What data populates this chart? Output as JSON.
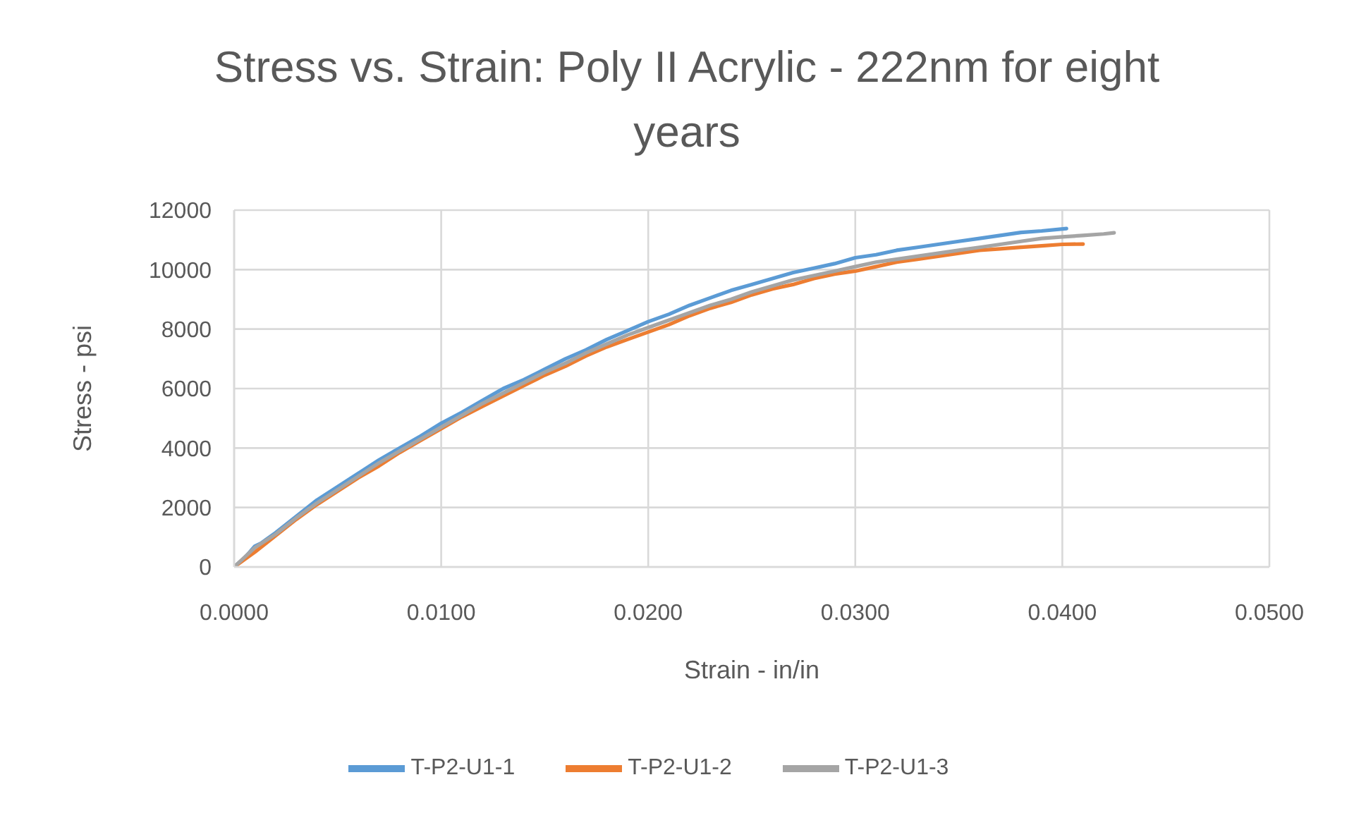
{
  "chart_data": {
    "type": "line",
    "title": "Stress vs. Strain: Poly II Acrylic - 222nm for eight years",
    "xlabel": "Strain - in/in",
    "ylabel": "Stress - psi",
    "xlim": [
      0,
      0.05
    ],
    "xticks": [
      {
        "value": 0,
        "label": "0.0000"
      },
      {
        "value": 0.01,
        "label": "0.0100"
      },
      {
        "value": 0.02,
        "label": "0.0200"
      },
      {
        "value": 0.03,
        "label": "0.0300"
      },
      {
        "value": 0.04,
        "label": "0.0400"
      },
      {
        "value": 0.05,
        "label": "0.0500"
      }
    ],
    "ylim": [
      0,
      12000
    ],
    "yticks": [
      0,
      2000,
      4000,
      6000,
      8000,
      10000,
      12000
    ],
    "grid": true,
    "legend": "bottom",
    "marker": "none",
    "line_style": "solid",
    "series": [
      {
        "name": "T-P2-U1-1",
        "color": "#5b9bd5",
        "x": [
          0,
          0.0005,
          0.001,
          0.0013,
          0.002,
          0.003,
          0.004,
          0.005,
          0.006,
          0.007,
          0.008,
          0.009,
          0.01,
          0.011,
          0.012,
          0.013,
          0.014,
          0.015,
          0.016,
          0.017,
          0.018,
          0.019,
          0.02,
          0.021,
          0.022,
          0.023,
          0.024,
          0.025,
          0.026,
          0.027,
          0.028,
          0.029,
          0.03,
          0.031,
          0.032,
          0.033,
          0.034,
          0.035,
          0.036,
          0.037,
          0.038,
          0.039,
          0.0402
        ],
        "values": [
          0,
          300,
          700,
          800,
          1150,
          1700,
          2250,
          2700,
          3150,
          3600,
          4000,
          4400,
          4830,
          5200,
          5600,
          6000,
          6300,
          6650,
          7000,
          7300,
          7650,
          7950,
          8250,
          8500,
          8800,
          9050,
          9300,
          9500,
          9700,
          9900,
          10050,
          10200,
          10400,
          10500,
          10650,
          10750,
          10850,
          10950,
          11050,
          11150,
          11250,
          11300,
          11380
        ]
      },
      {
        "name": "T-P2-U1-2",
        "color": "#ed7d31",
        "x": [
          0,
          0.001,
          0.002,
          0.003,
          0.004,
          0.005,
          0.006,
          0.007,
          0.008,
          0.009,
          0.01,
          0.011,
          0.012,
          0.013,
          0.014,
          0.015,
          0.016,
          0.017,
          0.018,
          0.019,
          0.02,
          0.021,
          0.022,
          0.023,
          0.024,
          0.025,
          0.026,
          0.027,
          0.028,
          0.029,
          0.03,
          0.031,
          0.032,
          0.033,
          0.034,
          0.035,
          0.036,
          0.037,
          0.038,
          0.039,
          0.04,
          0.041
        ],
        "values": [
          0,
          500,
          1050,
          1600,
          2100,
          2550,
          3000,
          3400,
          3850,
          4250,
          4650,
          5050,
          5400,
          5750,
          6100,
          6450,
          6750,
          7100,
          7400,
          7650,
          7900,
          8150,
          8450,
          8700,
          8900,
          9150,
          9350,
          9500,
          9700,
          9850,
          9950,
          10100,
          10250,
          10350,
          10450,
          10550,
          10650,
          10700,
          10750,
          10800,
          10850,
          10860
        ]
      },
      {
        "name": "T-P2-U1-3",
        "color": "#a5a5a5",
        "x": [
          0,
          0.001,
          0.002,
          0.003,
          0.004,
          0.005,
          0.006,
          0.007,
          0.008,
          0.009,
          0.01,
          0.011,
          0.012,
          0.013,
          0.014,
          0.015,
          0.016,
          0.017,
          0.018,
          0.019,
          0.02,
          0.021,
          0.022,
          0.023,
          0.024,
          0.025,
          0.026,
          0.027,
          0.028,
          0.029,
          0.03,
          0.031,
          0.032,
          0.033,
          0.034,
          0.035,
          0.036,
          0.037,
          0.038,
          0.039,
          0.04,
          0.041,
          0.042,
          0.0425
        ],
        "values": [
          0,
          650,
          1100,
          1650,
          2150,
          2600,
          3050,
          3500,
          3900,
          4300,
          4700,
          5100,
          5500,
          5850,
          6200,
          6550,
          6850,
          7200,
          7500,
          7800,
          8050,
          8300,
          8550,
          8800,
          9000,
          9250,
          9450,
          9650,
          9800,
          9950,
          10100,
          10250,
          10350,
          10450,
          10550,
          10650,
          10750,
          10850,
          10950,
          11050,
          11100,
          11150,
          11200,
          11240
        ]
      }
    ]
  }
}
